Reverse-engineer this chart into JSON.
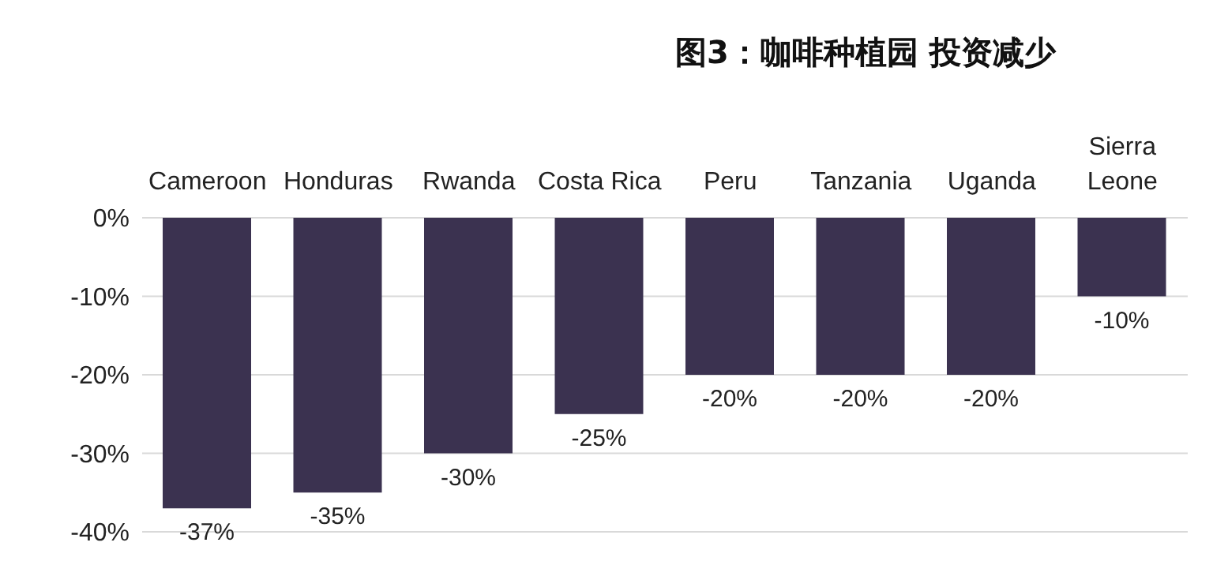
{
  "chart_data": {
    "type": "bar",
    "title": "图3：咖啡种植园 投资减少",
    "categories": [
      "Cameroon",
      "Honduras",
      "Rwanda",
      "Costa Rica",
      "Peru",
      "Tanzania",
      "Uganda",
      "Sierra Leone"
    ],
    "values": [
      -37,
      -35,
      -30,
      -25,
      -20,
      -20,
      -20,
      -10
    ],
    "value_labels": [
      "-37%",
      "-35%",
      "-30%",
      "-25%",
      "-20%",
      "-20%",
      "-20%",
      "-10%"
    ],
    "color": "#3b3250",
    "ylim": [
      -40,
      0
    ],
    "yticks": [
      {
        "value": 0,
        "label": "0%"
      },
      {
        "value": -10,
        "label": "-10%"
      },
      {
        "value": -20,
        "label": "-20%"
      },
      {
        "value": -30,
        "label": "-30%"
      },
      {
        "value": -40,
        "label": "-40%"
      }
    ],
    "grid": "y",
    "legend": false
  }
}
